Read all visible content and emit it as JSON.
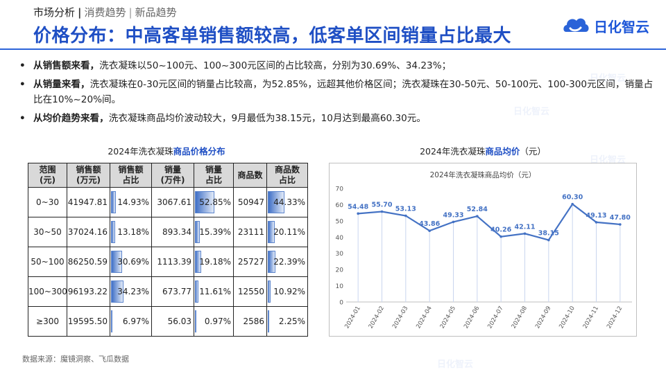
{
  "header": {
    "crumb_main": "市场分析",
    "crumb_sep": "|",
    "crumb_sub1": "消费趋势",
    "crumb_sep2": "|",
    "crumb_sub2": "新品趋势",
    "title": "价格分布：中高客单销售额较高，低客单区间销量占比最大",
    "logo_text": "日化智云",
    "logo_icon": "cloud-logo-icon"
  },
  "bullets": [
    {
      "lead": "从销售额来看，",
      "text": "洗衣凝珠以50~100元、100~300元区间的占比较高，分别为30.69%、34.23%；"
    },
    {
      "lead": "从销量来看，",
      "text": "洗衣凝珠在0-30元区间的销量占比较高，为52.85%，远超其他价格区间；洗衣凝珠在30-50元、50-100元、100-300元区间，销量占比在10%~20%间。"
    },
    {
      "lead": "从均价趋势来看，",
      "text": "洗衣凝珠商品均价波动较大，9月最低为38.15元，10月达到最高60.30元。"
    }
  ],
  "table_caption": {
    "prefix": "2024年洗衣凝珠",
    "highlight": "商品价格分布"
  },
  "price_table": {
    "headers": [
      [
        "范围",
        "(元)"
      ],
      [
        "销售额",
        "(万元)"
      ],
      [
        "销售额",
        "占比"
      ],
      [
        "销量",
        "(万件)"
      ],
      [
        "销量",
        "占比"
      ],
      [
        "商品数",
        ""
      ],
      [
        "商品数",
        "占比"
      ]
    ],
    "rows": [
      {
        "range": "0~30",
        "sales": "41947.81",
        "sales_share": "14.93%",
        "volume": "3067.61",
        "volume_share": "52.85%",
        "count": "50947",
        "count_share": "44.33%"
      },
      {
        "range": "30~50",
        "sales": "37024.16",
        "sales_share": "13.18%",
        "volume": "893.34",
        "volume_share": "15.39%",
        "count": "23111",
        "count_share": "20.11%"
      },
      {
        "range": "50~100",
        "sales": "86250.59",
        "sales_share": "30.69%",
        "volume": "1113.39",
        "volume_share": "19.18%",
        "count": "25727",
        "count_share": "22.39%"
      },
      {
        "range": "100~300",
        "sales": "96193.22",
        "sales_share": "34.23%",
        "volume": "673.77",
        "volume_share": "11.61%",
        "count": "12550",
        "count_share": "10.92%"
      },
      {
        "range": "≥300",
        "sales": "19595.50",
        "sales_share": "6.97%",
        "volume": "56.03",
        "volume_share": "0.97%",
        "count": "2586",
        "count_share": "2.25%"
      }
    ]
  },
  "chart_caption": {
    "prefix": "2024年洗衣凝珠",
    "highlight": "商品均价",
    "suffix": "（元）"
  },
  "chart_data": {
    "type": "line",
    "title": "2024年洗衣凝珠商品均价（元）",
    "categories": [
      "2024-01",
      "2024-02",
      "2024-03",
      "2024-04",
      "2024-05",
      "2024-06",
      "2024-07",
      "2024-08",
      "2024-09",
      "2024-10",
      "2024-11",
      "2024-12"
    ],
    "values": [
      54.48,
      55.7,
      53.13,
      43.86,
      49.33,
      52.84,
      40.26,
      42.11,
      38.15,
      60.3,
      49.13,
      47.8
    ],
    "labels": [
      "54.48",
      "55.70",
      "53.13",
      "43.86",
      "49.33",
      "52.84",
      "40.26",
      "42.11",
      "38.15",
      "60.30",
      "49.13",
      "47.80"
    ],
    "ylim": [
      0,
      70
    ],
    "yticks": [
      0,
      10,
      20,
      30,
      40,
      50,
      60,
      70
    ],
    "color": "#4472c4"
  },
  "source": "数据来源：魔镜洞察、飞瓜数据",
  "watermark": "日化智云"
}
